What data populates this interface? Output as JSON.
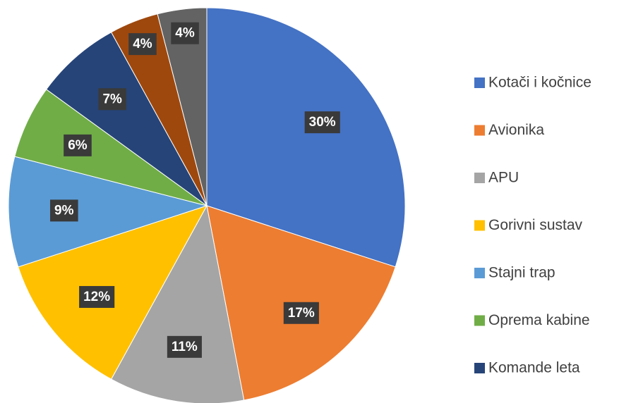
{
  "chart_data": {
    "type": "pie",
    "categories": [
      "Kotači i kočnice",
      "Avionika",
      "APU",
      "Gorivni sustav",
      "Stajni trap",
      "Oprema kabine",
      "Komande leta",
      null,
      null
    ],
    "values": [
      30,
      17,
      11,
      12,
      9,
      6,
      7,
      4,
      4
    ],
    "value_labels": [
      "30%",
      "17%",
      "11%",
      "12%",
      "9%",
      "6%",
      "7%",
      "4%",
      "4%"
    ],
    "colors": [
      "#4472c4",
      "#ed7d31",
      "#a5a5a5",
      "#ffc000",
      "#5b9bd5",
      "#70ad47",
      "#264478",
      "#9e480e",
      "#636363"
    ],
    "legend": "right"
  }
}
